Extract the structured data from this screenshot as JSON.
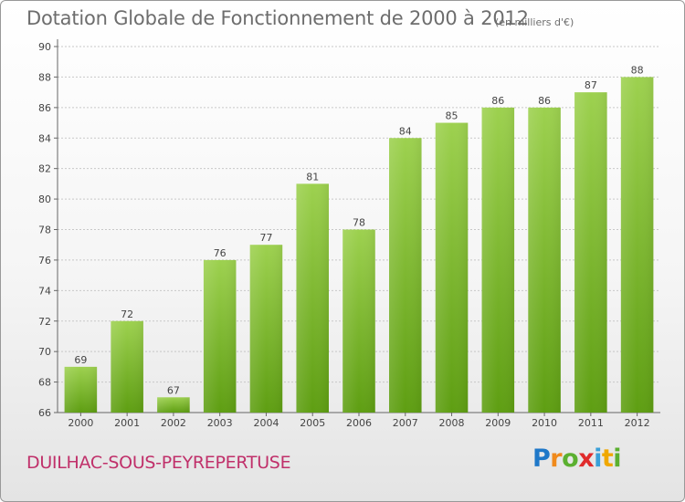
{
  "chart_data": {
    "type": "bar",
    "title": "Dotation Globale de Fonctionnement de 2000 à 2012",
    "unit_note": "(en milliers d'€)",
    "categories": [
      "2000",
      "2001",
      "2002",
      "2003",
      "2004",
      "2005",
      "2006",
      "2007",
      "2008",
      "2009",
      "2010",
      "2011",
      "2012"
    ],
    "values": [
      69,
      72,
      67,
      76,
      77,
      81,
      78,
      84,
      85,
      86,
      86,
      87,
      88
    ],
    "ylim": [
      66,
      90
    ],
    "yticks": [
      66,
      68,
      70,
      72,
      74,
      76,
      78,
      80,
      82,
      84,
      86,
      88,
      90
    ],
    "grid": true,
    "bar_color_top": "#9dd14f",
    "bar_color_bottom": "#5e9e12"
  },
  "footer": {
    "commune": "DUILHAC-SOUS-PEYREPERTUSE",
    "logo": [
      "P",
      "r",
      "o",
      "x",
      "i",
      "t",
      "i"
    ]
  }
}
